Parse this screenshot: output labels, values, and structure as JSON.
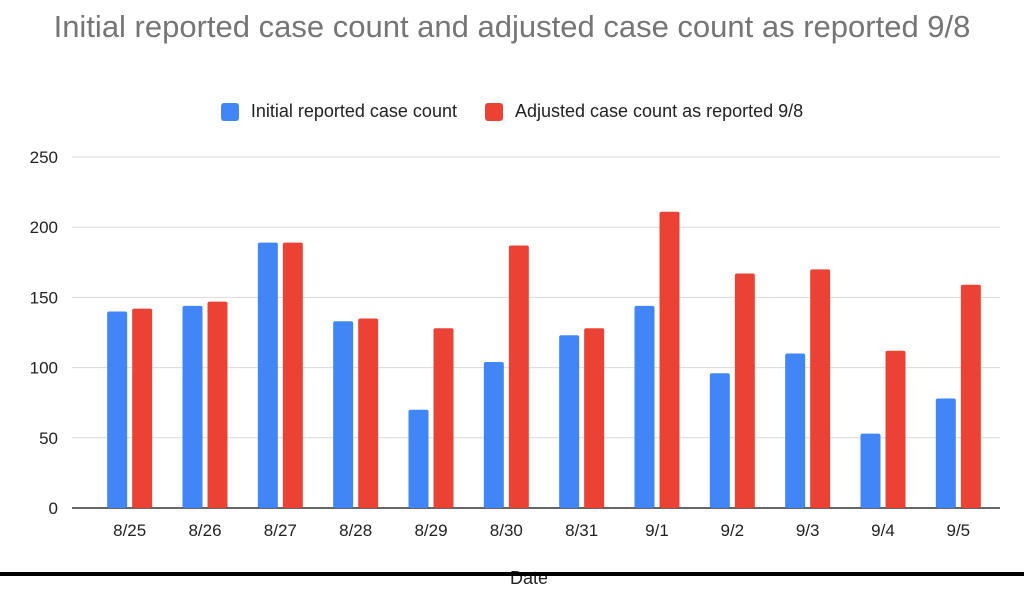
{
  "chart_data": {
    "type": "bar",
    "title": "Initial reported case count and adjusted case count as reported 9/8",
    "xlabel": "Date",
    "ylabel": "",
    "ylim": [
      0,
      250
    ],
    "yticks": [
      0,
      50,
      100,
      150,
      200,
      250
    ],
    "grid": true,
    "legend_position": "top",
    "categories": [
      "8/25",
      "8/26",
      "8/27",
      "8/28",
      "8/29",
      "8/30",
      "8/31",
      "9/1",
      "9/2",
      "9/3",
      "9/4",
      "9/5"
    ],
    "series": [
      {
        "name": "Initial reported case count",
        "color": "#4285F4",
        "values": [
          140,
          144,
          189,
          133,
          70,
          104,
          123,
          144,
          96,
          110,
          53,
          78
        ]
      },
      {
        "name": "Adjusted case count as reported 9/8",
        "color": "#EA4335",
        "values": [
          142,
          147,
          189,
          135,
          128,
          187,
          128,
          211,
          167,
          170,
          112,
          159
        ]
      }
    ]
  }
}
